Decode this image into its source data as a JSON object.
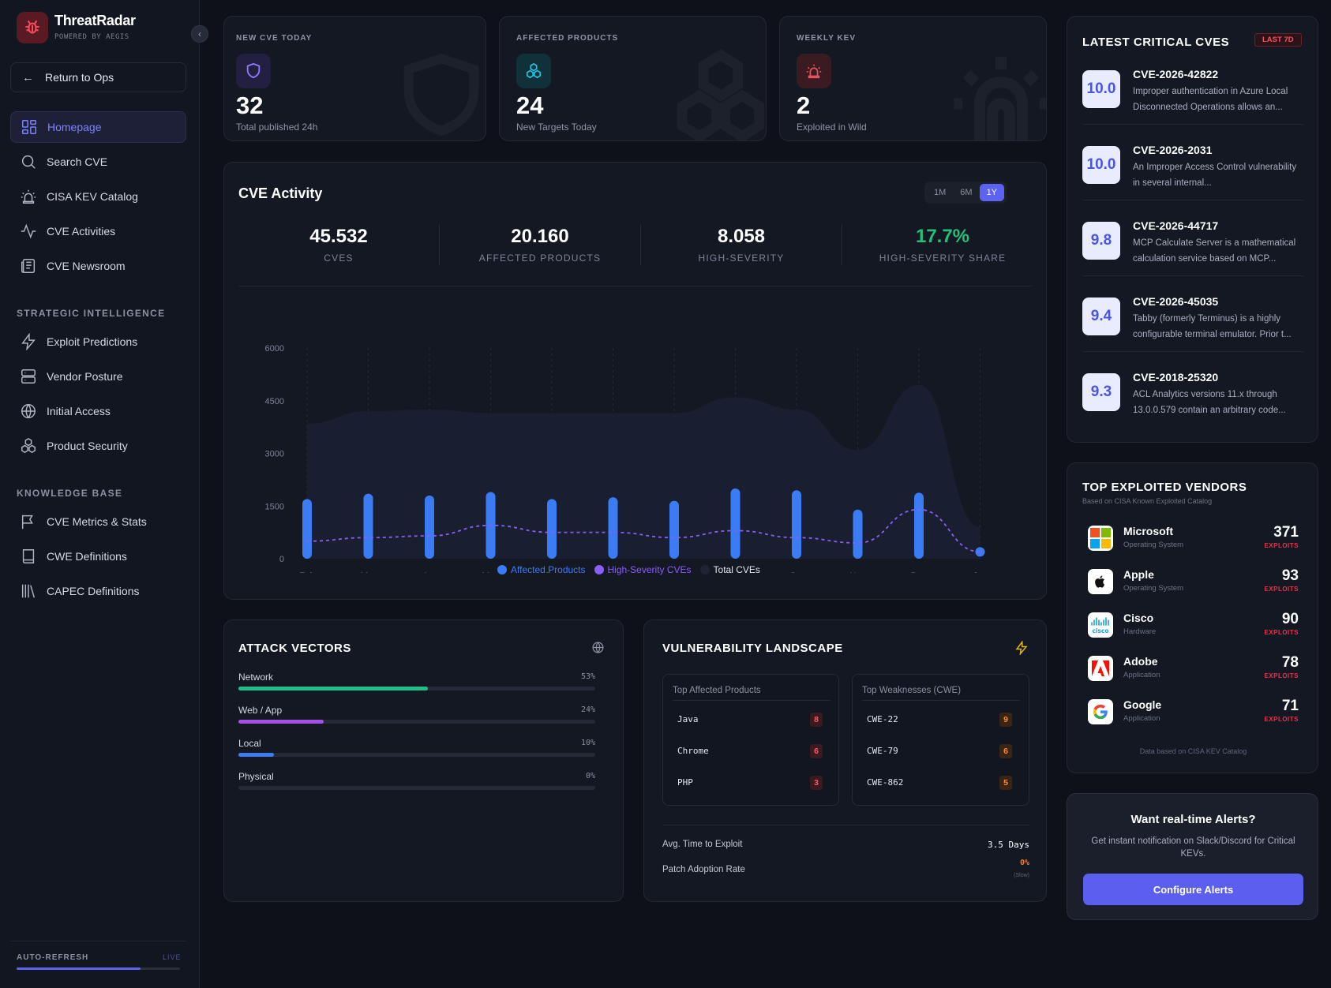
{
  "app": {
    "name": "ThreatRadar",
    "powered_by": "POWERED BY AEGIS"
  },
  "sidebar": {
    "return_label": "Return to Ops",
    "items": [
      {
        "label": "Homepage",
        "icon": "grid-icon"
      },
      {
        "label": "Search CVE",
        "icon": "search-icon"
      },
      {
        "label": "CISA KEV Catalog",
        "icon": "siren-icon"
      },
      {
        "label": "CVE Activities",
        "icon": "activity-icon"
      },
      {
        "label": "CVE Newsroom",
        "icon": "newspaper-icon"
      }
    ],
    "section_strategic": "STRATEGIC INTELLIGENCE",
    "strategic_items": [
      {
        "label": "Exploit Predictions",
        "icon": "zap-icon"
      },
      {
        "label": "Vendor Posture",
        "icon": "server-icon"
      },
      {
        "label": "Initial Access",
        "icon": "globe-icon"
      },
      {
        "label": "Product Security",
        "icon": "boxes-icon"
      }
    ],
    "section_knowledge": "KNOWLEDGE BASE",
    "knowledge_items": [
      {
        "label": "CVE Metrics & Stats",
        "icon": "flag-icon"
      },
      {
        "label": "CWE Definitions",
        "icon": "book-icon"
      },
      {
        "label": "CAPEC Definitions",
        "icon": "library-icon"
      }
    ],
    "auto_refresh": "AUTO-REFRESH",
    "live": "LIVE",
    "refresh_progress": 0.76
  },
  "stats": [
    {
      "label": "NEW CVE TODAY",
      "value": "32",
      "sub": "Total published 24h",
      "icon": "shield-icon",
      "color": "#8b7dff"
    },
    {
      "label": "AFFECTED PRODUCTS",
      "value": "24",
      "sub": "New Targets Today",
      "icon": "boxes-icon",
      "color": "#22c7e0"
    },
    {
      "label": "WEEKLY KEV",
      "value": "2",
      "sub": "Exploited in Wild",
      "icon": "siren-icon",
      "color": "#f0545f"
    }
  ],
  "activity": {
    "title": "CVE Activity",
    "ranges": [
      "1M",
      "6M",
      "1Y"
    ],
    "active_range": "1Y",
    "kpis": [
      {
        "value": "45.532",
        "label": "CVES"
      },
      {
        "value": "20.160",
        "label": "AFFECTED PRODUCTS"
      },
      {
        "value": "8.058",
        "label": "HIGH-SEVERITY"
      },
      {
        "value": "17.7%",
        "label": "HIGH-SEVERITY SHARE"
      }
    ],
    "legend": [
      "Affected Products",
      "High-Severity CVEs",
      "Total CVEs"
    ]
  },
  "chart_data": {
    "type": "bar",
    "categories": [
      "Feb",
      "Mar",
      "Apr",
      "May",
      "Jun",
      "Jul",
      "Aug",
      "Sep",
      "Oct",
      "Nov",
      "Dec",
      "Jan"
    ],
    "ylim": [
      0,
      6000
    ],
    "yticks": [
      0,
      1500,
      3000,
      4500,
      6000
    ],
    "series": [
      {
        "name": "Affected Products",
        "type": "bar",
        "color": "#3b7cf5",
        "values": [
          1700,
          1850,
          1800,
          1900,
          1700,
          1750,
          1650,
          2000,
          1950,
          1400,
          1880,
          150
        ]
      },
      {
        "name": "High-Severity CVEs",
        "type": "line",
        "color": "#8b5cf6",
        "values": [
          500,
          600,
          650,
          950,
          750,
          750,
          600,
          800,
          600,
          450,
          1400,
          200
        ]
      },
      {
        "name": "Total CVEs",
        "type": "area",
        "color": "#1a2032",
        "values": [
          3850,
          4200,
          4250,
          4150,
          4150,
          4150,
          4150,
          4600,
          4250,
          3100,
          4950,
          900
        ]
      }
    ]
  },
  "attack_vectors": {
    "title": "ATTACK VECTORS",
    "items": [
      {
        "label": "Network",
        "pct": "53%",
        "value": 0.53,
        "color": "#1fbf85"
      },
      {
        "label": "Web / App",
        "pct": "24%",
        "value": 0.24,
        "color": "#a44fe8"
      },
      {
        "label": "Local",
        "pct": "10%",
        "value": 0.1,
        "color": "#3b7cf5"
      },
      {
        "label": "Physical",
        "pct": "0%",
        "value": 0.0,
        "color": "#3b7cf5"
      }
    ]
  },
  "landscape": {
    "title": "VULNERABILITY LANDSCAPE",
    "products_head": "Top Affected Products",
    "products": [
      {
        "name": "Java",
        "count": "8"
      },
      {
        "name": "Chrome",
        "count": "6"
      },
      {
        "name": "PHP",
        "count": "3"
      }
    ],
    "cwe_head": "Top Weaknesses (CWE)",
    "cwes": [
      {
        "name": "CWE-22",
        "count": "9"
      },
      {
        "name": "CWE-79",
        "count": "6"
      },
      {
        "name": "CWE-862",
        "count": "5"
      }
    ],
    "avg_label": "Avg. Time to Exploit",
    "avg_value": "3.5 Days",
    "patch_label": "Patch Adoption Rate",
    "patch_value": "0%",
    "patch_note": "(Slow)"
  },
  "latest": {
    "title": "LATEST CRITICAL CVES",
    "badge": "LAST 7D",
    "items": [
      {
        "score": "10.0",
        "id": "CVE-2026-42822",
        "desc": "Improper authentication in Azure Local Disconnected Operations allows an..."
      },
      {
        "score": "10.0",
        "id": "CVE-2026-2031",
        "desc": "An Improper Access Control vulnerability in several internal..."
      },
      {
        "score": "9.8",
        "id": "CVE-2026-44717",
        "desc": "MCP Calculate Server is a mathematical calculation service based on MCP..."
      },
      {
        "score": "9.4",
        "id": "CVE-2026-45035",
        "desc": "Tabby (formerly Terminus) is a highly configurable terminal emulator. Prior t..."
      },
      {
        "score": "9.3",
        "id": "CVE-2018-25320",
        "desc": "ACL Analytics versions 11.x through 13.0.0.579 contain an arbitrary code..."
      }
    ]
  },
  "vendors": {
    "title": "TOP EXPLOITED VENDORS",
    "subtitle": "Based on CISA Known Exploited Catalog",
    "exploits_label": "EXPLOITS",
    "items": [
      {
        "name": "Microsoft",
        "category": "Operating System",
        "count": "371",
        "icon": "microsoft-logo-icon"
      },
      {
        "name": "Apple",
        "category": "Operating System",
        "count": "93",
        "icon": "apple-logo-icon"
      },
      {
        "name": "Cisco",
        "category": "Hardware",
        "count": "90",
        "icon": "cisco-logo-icon"
      },
      {
        "name": "Adobe",
        "category": "Application",
        "count": "78",
        "icon": "adobe-logo-icon"
      },
      {
        "name": "Google",
        "category": "Application",
        "count": "71",
        "icon": "google-logo-icon"
      }
    ],
    "footer": "Data based on CISA KEV Catalog"
  },
  "alerts": {
    "title": "Want real-time Alerts?",
    "desc": "Get instant notification on Slack/Discord for Critical KEVs.",
    "button": "Configure Alerts"
  }
}
